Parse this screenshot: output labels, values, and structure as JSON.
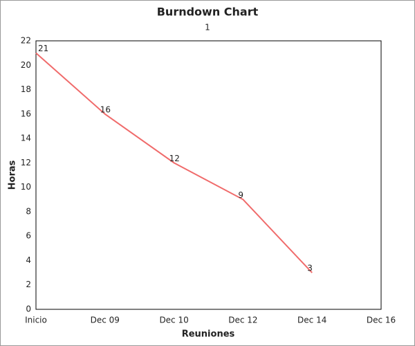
{
  "chart_data": {
    "type": "line",
    "title": "Burndown Chart",
    "subtitle": "1",
    "x_label": "Reuniones",
    "y_label": "Horas",
    "categories": [
      "Inicio",
      "Dec 09",
      "Dec 10",
      "Dec 12",
      "Dec 14",
      "Dec 16"
    ],
    "series": [
      {
        "color": "#f06b6b",
        "values": [
          21,
          16,
          12,
          9,
          3,
          null
        ]
      }
    ],
    "ylim": [
      0,
      22
    ],
    "yticks": [
      0,
      2,
      4,
      6,
      8,
      10,
      12,
      14,
      16,
      18,
      20,
      22
    ],
    "grid": false,
    "data_labels": true
  }
}
